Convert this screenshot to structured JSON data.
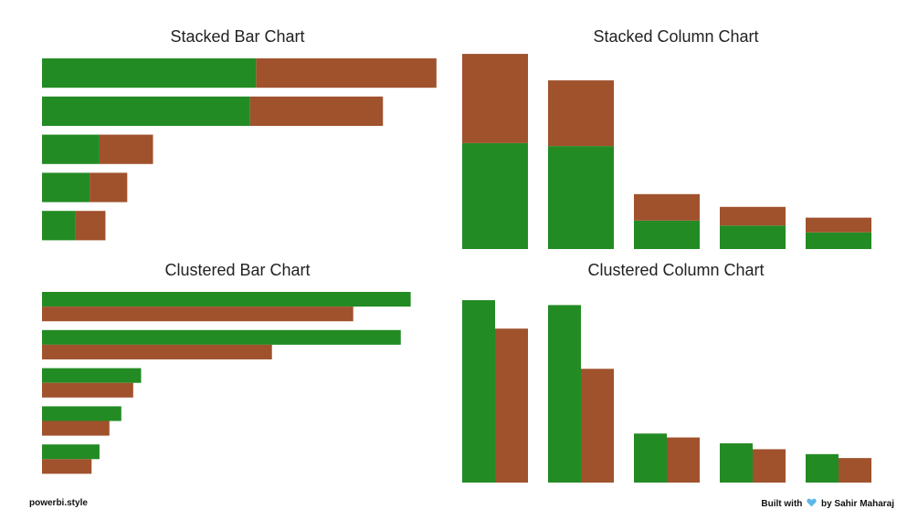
{
  "colors": {
    "series_a": "#238b24",
    "series_b": "#a0522d"
  },
  "chart_data": [
    {
      "type": "bar",
      "title": "Stacked Bar Chart",
      "stacked": true,
      "orientation": "horizontal",
      "xlim": [
        0,
        200
      ],
      "categories": [
        "",
        "",
        "",
        "",
        ""
      ],
      "series": [
        {
          "values": [
            108,
            105,
            29,
            24,
            17
          ]
        },
        {
          "values": [
            91,
            67,
            27,
            19,
            15
          ]
        }
      ]
    },
    {
      "type": "bar",
      "title": "Stacked Column Chart",
      "stacked": true,
      "orientation": "vertical",
      "ylim": [
        0,
        200
      ],
      "categories": [
        "",
        "",
        "",
        "",
        ""
      ],
      "series": [
        {
          "values": [
            108,
            105,
            29,
            24,
            17
          ]
        },
        {
          "values": [
            91,
            67,
            27,
            19,
            15
          ]
        }
      ]
    },
    {
      "type": "bar",
      "title": "Clustered Bar Chart",
      "stacked": false,
      "orientation": "horizontal",
      "xlim": [
        0,
        200
      ],
      "categories": [
        "",
        "",
        "",
        "",
        ""
      ],
      "series": [
        {
          "values": [
            186,
            181,
            50,
            40,
            29
          ]
        },
        {
          "values": [
            157,
            116,
            46,
            34,
            25
          ]
        }
      ]
    },
    {
      "type": "bar",
      "title": "Clustered Column Chart",
      "stacked": false,
      "orientation": "vertical",
      "ylim": [
        0,
        200
      ],
      "categories": [
        "",
        "",
        "",
        "",
        ""
      ],
      "series": [
        {
          "values": [
            186,
            181,
            50,
            40,
            29
          ]
        },
        {
          "values": [
            157,
            116,
            46,
            34,
            25
          ]
        }
      ]
    }
  ],
  "footer": {
    "left": "powerbi.style",
    "right_prefix": "Built with",
    "right_suffix": "by Sahir Maharaj",
    "heart_icon": "heart-icon"
  }
}
